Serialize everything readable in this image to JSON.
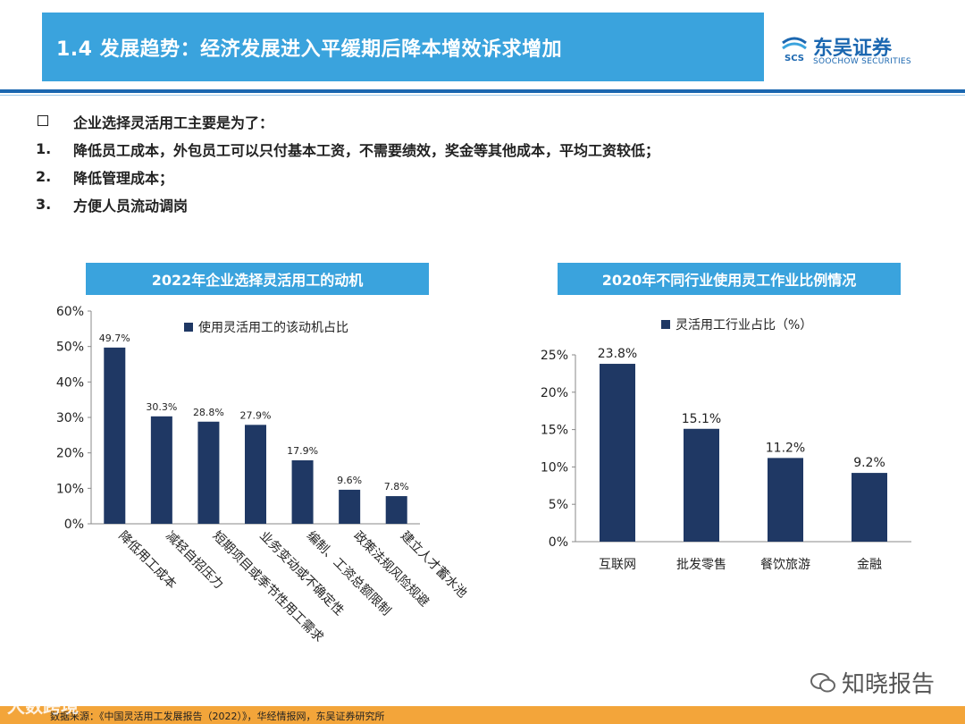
{
  "header": {
    "title": "1.4 发展趋势：经济发展进入平缓期后降本增效诉求增加"
  },
  "logo": {
    "name": "东吴证券",
    "sub": "SOOCHOW SECURITIES",
    "mark": "SCS"
  },
  "bullets": [
    {
      "marker": "",
      "text": "企业选择灵活用工主要是为了："
    },
    {
      "marker": "1.",
      "text": "降低员工成本，外包员工可以只付基本工资，不需要绩效，奖金等其他成本，平均工资较低；"
    },
    {
      "marker": "2.",
      "text": "降低管理成本；"
    },
    {
      "marker": "3.",
      "text": "方便人员流动调岗"
    }
  ],
  "colors": {
    "accent": "#3aa3dd",
    "brand": "#1b67b0",
    "bar": "#1f3864",
    "footer": "#f3a53a"
  },
  "chart_data": [
    {
      "type": "bar",
      "title": "2022年企业选择灵活用工的动机",
      "categories": [
        "降低用工成本",
        "减轻自招压力",
        "短期项目或季节性用工需求",
        "业务变动或不确定性",
        "编制、工资总额限制",
        "政策法规风险规避",
        "建立人才蓄水池"
      ],
      "series": [
        {
          "name": "使用灵活用工的该动机占比",
          "values": [
            49.7,
            30.3,
            28.8,
            27.9,
            17.9,
            9.6,
            7.8
          ]
        }
      ],
      "data_labels": [
        "49.7%",
        "30.3%",
        "28.8%",
        "27.9%",
        "17.9%",
        "9.6%",
        "7.8%"
      ],
      "ylim": [
        0,
        60
      ],
      "yticks": [
        "0%",
        "10%",
        "20%",
        "30%",
        "40%",
        "50%",
        "60%"
      ],
      "legend": "top"
    },
    {
      "type": "bar",
      "title": "2020年不同行业使用灵工作业比例情况",
      "categories": [
        "互联网",
        "批发零售",
        "餐饮旅游",
        "金融"
      ],
      "series": [
        {
          "name": "灵活用工行业占比（%）",
          "values": [
            23.8,
            15.1,
            11.2,
            9.2
          ]
        }
      ],
      "data_labels": [
        "23.8%",
        "15.1%",
        "11.2%",
        "9.2%"
      ],
      "ylim": [
        0,
        25
      ],
      "yticks": [
        "0%",
        "5%",
        "10%",
        "15%",
        "20%",
        "25%"
      ],
      "legend": "top"
    }
  ],
  "footer": {
    "source": "数据来源：《中国灵活用工发展报告（2022）》，华经情报网，东吴证券研究所"
  },
  "watermarks": {
    "left": "大数跨境",
    "right": "知晓报告"
  }
}
